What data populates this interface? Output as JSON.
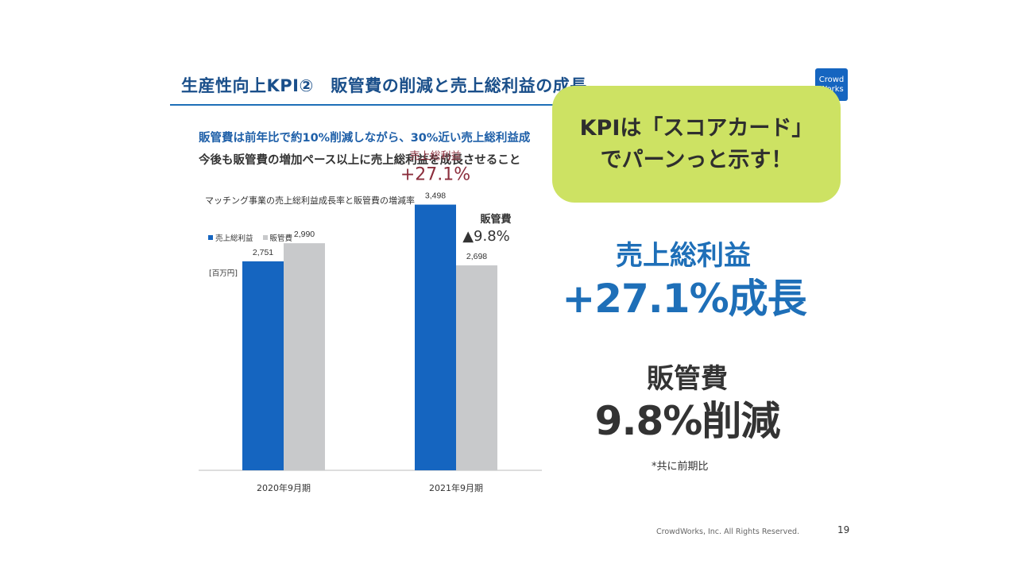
{
  "slide": {
    "title": "生産性向上KPI②　販管費の削減と売上総利益の成長",
    "logo_text": "Crowd Works",
    "subtitle_1": "販管費は前年比で約10%削減しながら、30%近い売上総利益成",
    "subtitle_2": "今後も販管費の増加ペース以上に売上総利益を成長させること",
    "highlight_1": "売上総利益",
    "highlight_2": "+27.1%成長",
    "highlight_3": "販管費",
    "highlight_4": "9.8%削減",
    "note": "*共に前期比",
    "copyright": "CrowdWorks, Inc. All Rights Reserved.",
    "page_number": "19"
  },
  "callout": {
    "line1": "KPIは「スコアカード」",
    "line2": "でパーンっと示す！"
  },
  "colors": {
    "series_gross_profit": "#1565c0",
    "series_sga": "#c8c9cb",
    "callout_bg": "#cde263",
    "title_blue": "#1a4f8a",
    "profit_annotation": "#8b2e3c"
  },
  "chart_data": {
    "type": "bar",
    "title": "マッチング事業の売上総利益成長率と販管費の増減率",
    "unit_label": "[百万円]",
    "categories": [
      "2020年9月期",
      "2021年9月期"
    ],
    "series": [
      {
        "name": "売上総利益",
        "values": [
          2751,
          3498
        ],
        "labels": [
          "2,751",
          "3,498"
        ]
      },
      {
        "name": "販管費",
        "values": [
          2990,
          2698
        ],
        "labels": [
          "2,990",
          "2,698"
        ]
      }
    ],
    "ylim": [
      0,
      4100
    ],
    "annotations": [
      {
        "label": "売上総利益",
        "value": "+27.1%"
      },
      {
        "label": "販管費",
        "value": "▲9.8%"
      }
    ]
  }
}
